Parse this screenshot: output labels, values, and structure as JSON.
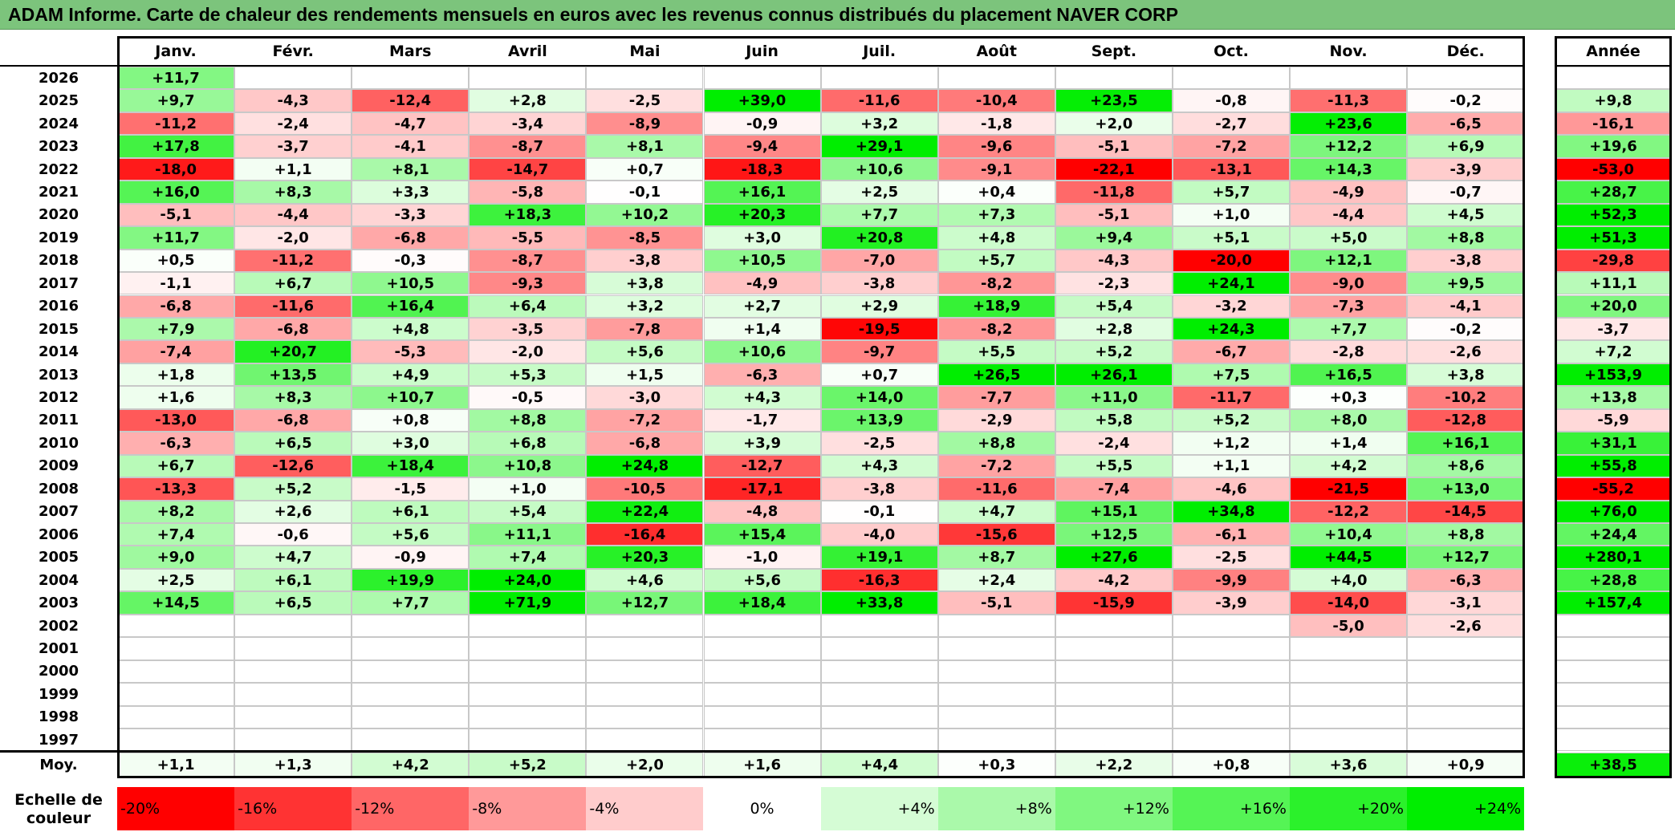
{
  "title": "ADAM Informe. Carte de chaleur des rendements mensuels en euros avec les revenus connus distribués du placement NAVER CORP",
  "chart_data": {
    "type": "heatmap",
    "title": "ADAM Informe. Carte de chaleur des rendements mensuels en euros avec les revenus connus distribués du placement NAVER CORP",
    "months": [
      "Janv.",
      "Févr.",
      "Mars",
      "Avril",
      "Mai",
      "Juin",
      "Juil.",
      "Août",
      "Sept.",
      "Oct.",
      "Nov.",
      "Déc."
    ],
    "year_header": "Année",
    "rows": [
      {
        "year": "2026",
        "months": [
          "+11,7",
          "",
          "",
          "",
          "",
          "",
          "",
          "",
          "",
          "",
          "",
          ""
        ],
        "annual": ""
      },
      {
        "year": "2025",
        "months": [
          "+9,7",
          "-4,3",
          "-12,4",
          "+2,8",
          "-2,5",
          "+39,0",
          "-11,6",
          "-10,4",
          "+23,5",
          "-0,8",
          "-11,3",
          "-0,2"
        ],
        "annual": "+9,8"
      },
      {
        "year": "2024",
        "months": [
          "-11,2",
          "-2,4",
          "-4,7",
          "-3,4",
          "-8,9",
          "-0,9",
          "+3,2",
          "-1,8",
          "+2,0",
          "-2,7",
          "+23,6",
          "-6,5"
        ],
        "annual": "-16,1"
      },
      {
        "year": "2023",
        "months": [
          "+17,8",
          "-3,7",
          "-4,1",
          "-8,7",
          "+8,1",
          "-9,4",
          "+29,1",
          "-9,6",
          "-5,1",
          "-7,2",
          "+12,2",
          "+6,9"
        ],
        "annual": "+19,6"
      },
      {
        "year": "2022",
        "months": [
          "-18,0",
          "+1,1",
          "+8,1",
          "-14,7",
          "+0,7",
          "-18,3",
          "+10,6",
          "-9,1",
          "-22,1",
          "-13,1",
          "+14,3",
          "-3,9"
        ],
        "annual": "-53,0"
      },
      {
        "year": "2021",
        "months": [
          "+16,0",
          "+8,3",
          "+3,3",
          "-5,8",
          "-0,1",
          "+16,1",
          "+2,5",
          "+0,4",
          "-11,8",
          "+5,7",
          "-4,9",
          "-0,7"
        ],
        "annual": "+28,7"
      },
      {
        "year": "2020",
        "months": [
          "-5,1",
          "-4,4",
          "-3,3",
          "+18,3",
          "+10,2",
          "+20,3",
          "+7,7",
          "+7,3",
          "-5,1",
          "+1,0",
          "-4,4",
          "+4,5"
        ],
        "annual": "+52,3"
      },
      {
        "year": "2019",
        "months": [
          "+11,7",
          "-2,0",
          "-6,8",
          "-5,5",
          "-8,5",
          "+3,0",
          "+20,8",
          "+4,8",
          "+9,4",
          "+5,1",
          "+5,0",
          "+8,8"
        ],
        "annual": "+51,3"
      },
      {
        "year": "2018",
        "months": [
          "+0,5",
          "-11,2",
          "-0,3",
          "-8,7",
          "-3,8",
          "+10,5",
          "-7,0",
          "+5,7",
          "-4,3",
          "-20,0",
          "+12,1",
          "-3,8"
        ],
        "annual": "-29,8"
      },
      {
        "year": "2017",
        "months": [
          "-1,1",
          "+6,7",
          "+10,5",
          "-9,3",
          "+3,8",
          "-4,9",
          "-3,8",
          "-8,2",
          "-2,3",
          "+24,1",
          "-9,0",
          "+9,5"
        ],
        "annual": "+11,1"
      },
      {
        "year": "2016",
        "months": [
          "-6,8",
          "-11,6",
          "+16,4",
          "+6,4",
          "+3,2",
          "+2,7",
          "+2,9",
          "+18,9",
          "+5,4",
          "-3,2",
          "-7,3",
          "-4,1"
        ],
        "annual": "+20,0"
      },
      {
        "year": "2015",
        "months": [
          "+7,9",
          "-6,8",
          "+4,8",
          "-3,5",
          "-7,8",
          "+1,4",
          "-19,5",
          "-8,2",
          "+2,8",
          "+24,3",
          "+7,7",
          "-0,2"
        ],
        "annual": "-3,7"
      },
      {
        "year": "2014",
        "months": [
          "-7,4",
          "+20,7",
          "-5,3",
          "-2,0",
          "+5,6",
          "+10,6",
          "-9,7",
          "+5,5",
          "+5,2",
          "-6,7",
          "-2,8",
          "-2,6"
        ],
        "annual": "+7,2"
      },
      {
        "year": "2013",
        "months": [
          "+1,8",
          "+13,5",
          "+4,9",
          "+5,3",
          "+1,5",
          "-6,3",
          "+0,7",
          "+26,5",
          "+26,1",
          "+7,5",
          "+16,5",
          "+3,8"
        ],
        "annual": "+153,9"
      },
      {
        "year": "2012",
        "months": [
          "+1,6",
          "+8,3",
          "+10,7",
          "-0,5",
          "-3,0",
          "+4,3",
          "+14,0",
          "-7,7",
          "+11,0",
          "-11,7",
          "+0,3",
          "-10,2"
        ],
        "annual": "+13,8"
      },
      {
        "year": "2011",
        "months": [
          "-13,0",
          "-6,8",
          "+0,8",
          "+8,8",
          "-7,2",
          "-1,7",
          "+13,9",
          "-2,9",
          "+5,8",
          "+5,2",
          "+8,0",
          "-12,8"
        ],
        "annual": "-5,9"
      },
      {
        "year": "2010",
        "months": [
          "-6,3",
          "+6,5",
          "+3,0",
          "+6,8",
          "-6,8",
          "+3,9",
          "-2,5",
          "+8,8",
          "-2,4",
          "+1,2",
          "+1,4",
          "+16,1"
        ],
        "annual": "+31,1"
      },
      {
        "year": "2009",
        "months": [
          "+6,7",
          "-12,6",
          "+18,4",
          "+10,8",
          "+24,8",
          "-12,7",
          "+4,3",
          "-7,2",
          "+5,5",
          "+1,1",
          "+4,2",
          "+8,6"
        ],
        "annual": "+55,8"
      },
      {
        "year": "2008",
        "months": [
          "-13,3",
          "+5,2",
          "-1,5",
          "+1,0",
          "-10,5",
          "-17,1",
          "-3,8",
          "-11,6",
          "-7,4",
          "-4,6",
          "-21,5",
          "+13,0"
        ],
        "annual": "-55,2"
      },
      {
        "year": "2007",
        "months": [
          "+8,2",
          "+2,6",
          "+6,1",
          "+5,4",
          "+22,4",
          "-4,8",
          "-0,1",
          "+4,7",
          "+15,1",
          "+34,8",
          "-12,2",
          "-14,5"
        ],
        "annual": "+76,0"
      },
      {
        "year": "2006",
        "months": [
          "+7,4",
          "-0,6",
          "+5,6",
          "+11,1",
          "-16,4",
          "+15,4",
          "-4,0",
          "-15,6",
          "+12,5",
          "-6,1",
          "+10,4",
          "+8,8"
        ],
        "annual": "+24,4"
      },
      {
        "year": "2005",
        "months": [
          "+9,0",
          "+4,7",
          "-0,9",
          "+7,4",
          "+20,3",
          "-1,0",
          "+19,1",
          "+8,7",
          "+27,6",
          "-2,5",
          "+44,5",
          "+12,7"
        ],
        "annual": "+280,1"
      },
      {
        "year": "2004",
        "months": [
          "+2,5",
          "+6,1",
          "+19,9",
          "+24,0",
          "+4,6",
          "+5,6",
          "-16,3",
          "+2,4",
          "-4,2",
          "-9,9",
          "+4,0",
          "-6,3"
        ],
        "annual": "+28,8"
      },
      {
        "year": "2003",
        "months": [
          "+14,5",
          "+6,5",
          "+7,7",
          "+71,9",
          "+12,7",
          "+18,4",
          "+33,8",
          "-5,1",
          "-15,9",
          "-3,9",
          "-14,0",
          "-3,1"
        ],
        "annual": "+157,4"
      },
      {
        "year": "2002",
        "months": [
          "",
          "",
          "",
          "",
          "",
          "",
          "",
          "",
          "",
          "",
          "-5,0",
          "-2,6"
        ],
        "annual": ""
      },
      {
        "year": "2001",
        "months": [
          "",
          "",
          "",
          "",
          "",
          "",
          "",
          "",
          "",
          "",
          "",
          ""
        ],
        "annual": ""
      },
      {
        "year": "2000",
        "months": [
          "",
          "",
          "",
          "",
          "",
          "",
          "",
          "",
          "",
          "",
          "",
          ""
        ],
        "annual": ""
      },
      {
        "year": "1999",
        "months": [
          "",
          "",
          "",
          "",
          "",
          "",
          "",
          "",
          "",
          "",
          "",
          ""
        ],
        "annual": ""
      },
      {
        "year": "1998",
        "months": [
          "",
          "",
          "",
          "",
          "",
          "",
          "",
          "",
          "",
          "",
          "",
          ""
        ],
        "annual": ""
      },
      {
        "year": "1997",
        "months": [
          "",
          "",
          "",
          "",
          "",
          "",
          "",
          "",
          "",
          "",
          "",
          ""
        ],
        "annual": ""
      }
    ],
    "average_label": "Moy.",
    "averages": [
      "+1,1",
      "+1,3",
      "+4,2",
      "+5,2",
      "+2,0",
      "+1,6",
      "+4,4",
      "+0,3",
      "+2,2",
      "+0,8",
      "+3,6",
      "+0,9"
    ],
    "average_annual": "+38,5",
    "scale_label": "Echelle de couleur",
    "scale": [
      "-20%",
      "-16%",
      "-12%",
      "-8%",
      "-4%",
      "0%",
      "+4%",
      "+8%",
      "+12%",
      "+16%",
      "+20%",
      "+24%"
    ],
    "colors": {
      "negative_max": "#ff0000",
      "neutral": "#ffffff",
      "positive_max": "#00ee00",
      "title_bar": "#7cc47c"
    }
  }
}
